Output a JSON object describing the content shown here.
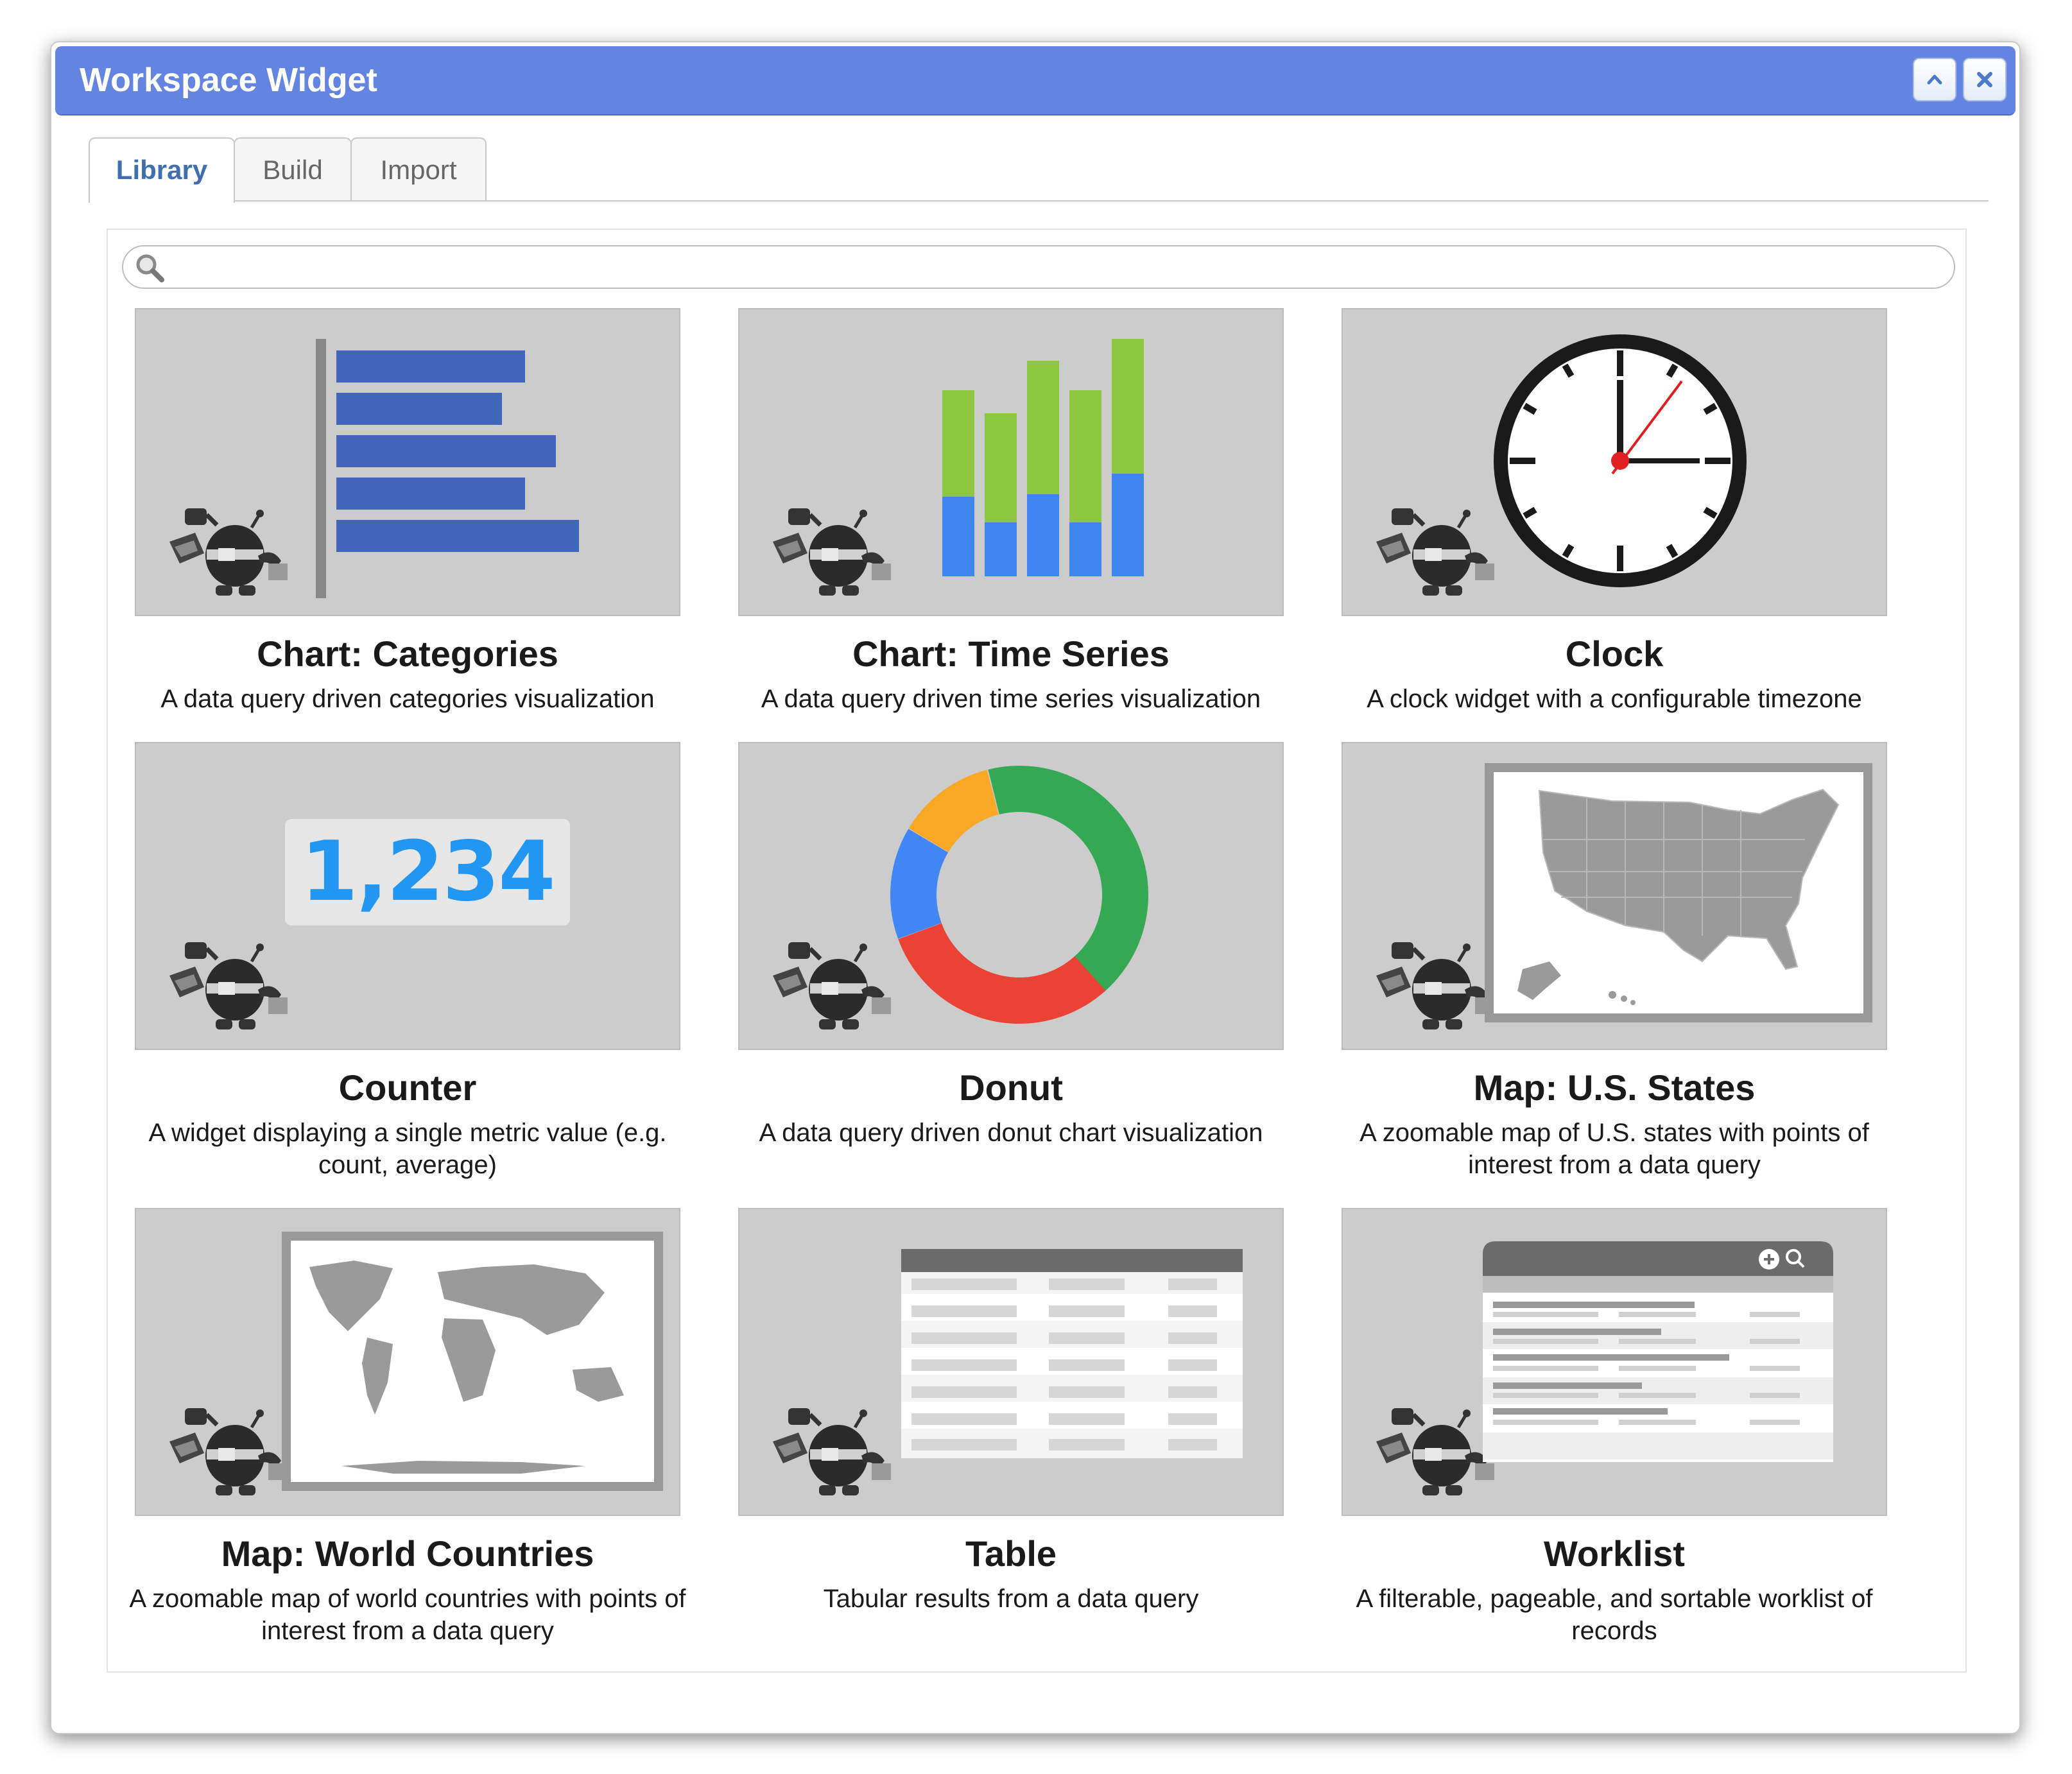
{
  "window": {
    "title": "Workspace Widget",
    "collapse_icon": "chevron-up-icon",
    "close_icon": "close-icon",
    "accent_color": "#6384e0"
  },
  "tabs": [
    {
      "label": "Library",
      "active": true
    },
    {
      "label": "Build",
      "active": false
    },
    {
      "label": "Import",
      "active": false
    }
  ],
  "search": {
    "placeholder": "",
    "value": "",
    "icon": "search-icon"
  },
  "widgets": [
    {
      "title": "Chart: Categories",
      "description": "A data query driven categories visualization",
      "thumbnail": "horizontal-bar-chart"
    },
    {
      "title": "Chart: Time Series",
      "description": "A data query driven time series visualization",
      "thumbnail": "stacked-column-chart"
    },
    {
      "title": "Clock",
      "description": "A clock widget with a configurable timezone",
      "thumbnail": "clock-face"
    },
    {
      "title": "Counter",
      "description": "A widget displaying a single metric value (e.g. count, average)",
      "thumbnail": "counter-value",
      "sample_value": "1,234"
    },
    {
      "title": "Donut",
      "description": "A data query driven donut chart visualization",
      "thumbnail": "donut-chart"
    },
    {
      "title": "Map: U.S. States",
      "description": "A zoomable map of U.S. states with points of interest from a data query",
      "thumbnail": "us-map"
    },
    {
      "title": "Map: World Countries",
      "description": "A zoomable map of world countries with points of interest from a data query",
      "thumbnail": "world-map"
    },
    {
      "title": "Table",
      "description": "Tabular results from a data query",
      "thumbnail": "table-grid"
    },
    {
      "title": "Worklist",
      "description": "A filterable, pageable, and sortable worklist of records",
      "thumbnail": "worklist-panel"
    }
  ]
}
